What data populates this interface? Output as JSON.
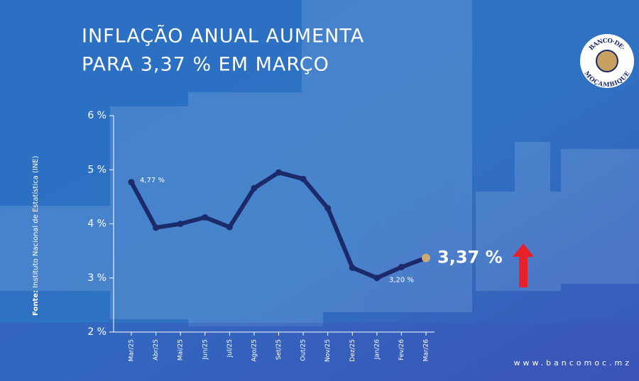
{
  "chart_data": {
    "type": "line",
    "title": [
      "INFLAÇÃO ANUAL AUMENTA",
      "PARA 3,37 % EM MARÇO"
    ],
    "source_label": "Fonte:",
    "source": "Instituto Nacional de Estatística (INE)",
    "categories": [
      "Mar/25",
      "Abr/25",
      "Mai/25",
      "Jun/25",
      "Jul/25",
      "Ago/25",
      "Set/25",
      "Out/25",
      "Nov/25",
      "Dez/25",
      "Jan/26",
      "Fev/26",
      "Mar/26"
    ],
    "series": [
      {
        "color": "#1b2a6b",
        "values": [
          4.77,
          3.93,
          4.0,
          4.12,
          3.94,
          4.66,
          4.95,
          4.83,
          4.29,
          3.19,
          3.0,
          3.2,
          3.37
        ],
        "value_labels": [
          "4,77 %",
          null,
          null,
          null,
          null,
          null,
          null,
          null,
          null,
          null,
          null,
          "3,20 %",
          "3,37 %"
        ]
      }
    ],
    "highlight_color": "#c9a97a",
    "ylim": [
      2,
      6
    ],
    "yticks": [
      {
        "value": 2,
        "label": "2 %"
      },
      {
        "value": 3,
        "label": "3 %"
      },
      {
        "value": 4,
        "label": "4 %"
      },
      {
        "value": 5,
        "label": "5 %"
      },
      {
        "value": 6,
        "label": "6 %"
      }
    ],
    "logo": {
      "top": "BANCO·DE·",
      "bottom": "MOÇAMBIQUE"
    },
    "website": "www.bancomoc.mz"
  }
}
